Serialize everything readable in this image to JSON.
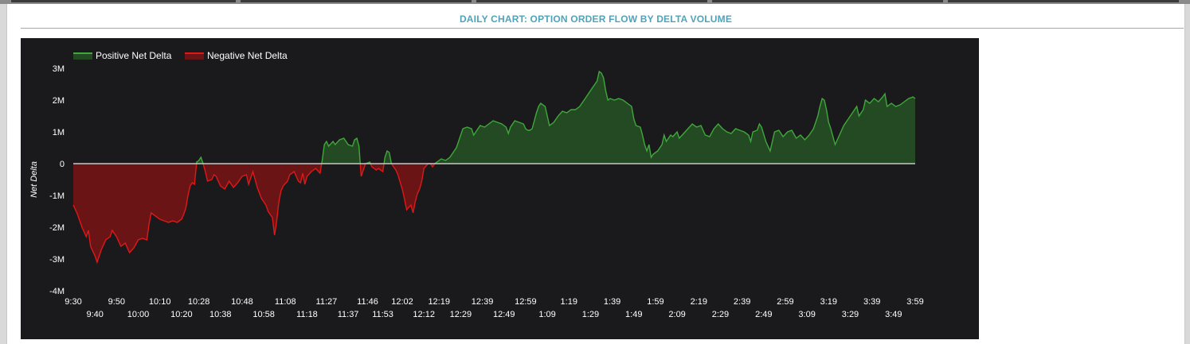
{
  "panel": {
    "title": "DAILY CHART: OPTION ORDER FLOW BY DELTA VOLUME"
  },
  "chart_data": {
    "type": "area",
    "title": "DAILY CHART: OPTION ORDER FLOW BY DELTA VOLUME",
    "xlabel": "",
    "ylabel": "Net Delta",
    "ylim": [
      -4000000,
      3000000
    ],
    "grid": false,
    "legend_position": "top-left",
    "y_tick_values": [
      3000000,
      2000000,
      1000000,
      0,
      -1000000,
      -2000000,
      -3000000,
      -4000000
    ],
    "y_tick_labels": [
      "3M",
      "2M",
      "1M",
      "0",
      "-1M",
      "-2M",
      "-3M",
      "-4M"
    ],
    "x_tick_labels_row1": [
      "9:30",
      "9:50",
      "10:10",
      "10:28",
      "10:48",
      "11:08",
      "11:27",
      "11:46",
      "12:02",
      "12:19",
      "12:39",
      "12:59",
      "1:19",
      "1:39",
      "1:59",
      "2:19",
      "2:39",
      "2:59",
      "3:19",
      "3:39",
      "3:59"
    ],
    "x_tick_labels_row2": [
      "9:40",
      "10:00",
      "10:20",
      "10:38",
      "10:58",
      "11:18",
      "11:37",
      "11:53",
      "12:12",
      "12:29",
      "12:49",
      "1:09",
      "1:29",
      "1:49",
      "2:09",
      "2:29",
      "2:49",
      "3:09",
      "3:29",
      "3:49"
    ],
    "x_start_minute": 570,
    "x_end_minute": 959,
    "colors": {
      "positive_line": "#3fa83a",
      "positive_fill": "#234a23",
      "negative_line": "#e01818",
      "negative_fill": "#6a1416",
      "zero_line": "#c8c8c8",
      "text": "#ffffff"
    },
    "series": [
      {
        "name": "Positive Net Delta",
        "color": "#3fa83a"
      },
      {
        "name": "Negative Net Delta",
        "color": "#e01818"
      }
    ],
    "points": [
      [
        "9:30",
        -1300000
      ],
      [
        "9:32",
        -1600000
      ],
      [
        "9:34",
        -2000000
      ],
      [
        "9:36",
        -2300000
      ],
      [
        "9:37",
        -2100000
      ],
      [
        "9:38",
        -2600000
      ],
      [
        "9:40",
        -2900000
      ],
      [
        "9:41",
        -3100000
      ],
      [
        "9:43",
        -2700000
      ],
      [
        "9:45",
        -2400000
      ],
      [
        "9:47",
        -2300000
      ],
      [
        "9:48",
        -2100000
      ],
      [
        "9:50",
        -2300000
      ],
      [
        "9:52",
        -2600000
      ],
      [
        "9:54",
        -2500000
      ],
      [
        "9:56",
        -2800000
      ],
      [
        "9:58",
        -2650000
      ],
      [
        "10:00",
        -2400000
      ],
      [
        "10:02",
        -2350000
      ],
      [
        "10:04",
        -2400000
      ],
      [
        "10:05",
        -1900000
      ],
      [
        "10:06",
        -1550000
      ],
      [
        "10:08",
        -1650000
      ],
      [
        "10:10",
        -1750000
      ],
      [
        "10:12",
        -1800000
      ],
      [
        "10:14",
        -1850000
      ],
      [
        "10:16",
        -1800000
      ],
      [
        "10:18",
        -1850000
      ],
      [
        "10:20",
        -1750000
      ],
      [
        "10:21",
        -1600000
      ],
      [
        "10:22",
        -1400000
      ],
      [
        "10:23",
        -1000000
      ],
      [
        "10:24",
        -700000
      ],
      [
        "10:25",
        -600000
      ],
      [
        "10:26",
        -650000
      ],
      [
        "10:27",
        50000
      ],
      [
        "10:28",
        100000
      ],
      [
        "10:29",
        200000
      ],
      [
        "10:30",
        0
      ],
      [
        "10:31",
        -250000
      ],
      [
        "10:32",
        -550000
      ],
      [
        "10:34",
        -500000
      ],
      [
        "10:35",
        -350000
      ],
      [
        "10:36",
        -400000
      ],
      [
        "10:38",
        -700000
      ],
      [
        "10:40",
        -800000
      ],
      [
        "10:42",
        -550000
      ],
      [
        "10:44",
        -750000
      ],
      [
        "10:46",
        -600000
      ],
      [
        "10:48",
        -400000
      ],
      [
        "10:50",
        -350000
      ],
      [
        "10:51",
        -650000
      ],
      [
        "10:52",
        -450000
      ],
      [
        "10:53",
        -250000
      ],
      [
        "10:55",
        -750000
      ],
      [
        "10:57",
        -1100000
      ],
      [
        "10:59",
        -1300000
      ],
      [
        "11:00",
        -1500000
      ],
      [
        "11:02",
        -1700000
      ],
      [
        "11:03",
        -2250000
      ],
      [
        "11:04",
        -1800000
      ],
      [
        "11:05",
        -1200000
      ],
      [
        "11:06",
        -850000
      ],
      [
        "11:07",
        -700000
      ],
      [
        "11:09",
        -550000
      ],
      [
        "11:10",
        -350000
      ],
      [
        "11:12",
        -250000
      ],
      [
        "11:14",
        -550000
      ],
      [
        "11:15",
        -600000
      ],
      [
        "11:16",
        -300000
      ],
      [
        "11:17",
        -650000
      ],
      [
        "11:18",
        -400000
      ],
      [
        "11:20",
        -250000
      ],
      [
        "11:22",
        -150000
      ],
      [
        "11:24",
        -300000
      ],
      [
        "11:25",
        100000
      ],
      [
        "11:26",
        600000
      ],
      [
        "11:27",
        700000
      ],
      [
        "11:28",
        550000
      ],
      [
        "11:30",
        700000
      ],
      [
        "11:31",
        600000
      ],
      [
        "11:33",
        750000
      ],
      [
        "11:35",
        800000
      ],
      [
        "11:36",
        700000
      ],
      [
        "11:37",
        600000
      ],
      [
        "11:39",
        550000
      ],
      [
        "11:40",
        750000
      ],
      [
        "11:41",
        800000
      ],
      [
        "11:42",
        550000
      ],
      [
        "11:43",
        -400000
      ],
      [
        "11:45",
        0
      ],
      [
        "11:47",
        50000
      ],
      [
        "11:48",
        -100000
      ],
      [
        "11:50",
        -200000
      ],
      [
        "11:51",
        -150000
      ],
      [
        "11:53",
        -250000
      ],
      [
        "11:54",
        200000
      ],
      [
        "11:55",
        400000
      ],
      [
        "11:56",
        350000
      ],
      [
        "11:57",
        0
      ],
      [
        "11:59",
        -200000
      ],
      [
        "12:00",
        -350000
      ],
      [
        "12:02",
        -800000
      ],
      [
        "12:03",
        -1100000
      ],
      [
        "12:04",
        -1450000
      ],
      [
        "12:06",
        -1300000
      ],
      [
        "12:07",
        -1550000
      ],
      [
        "12:08",
        -1200000
      ],
      [
        "12:09",
        -950000
      ],
      [
        "12:10",
        -800000
      ],
      [
        "12:11",
        -550000
      ],
      [
        "12:12",
        -150000
      ],
      [
        "12:14",
        0
      ],
      [
        "12:15",
        0
      ],
      [
        "12:16",
        -100000
      ],
      [
        "12:17",
        0
      ],
      [
        "12:19",
        100000
      ],
      [
        "12:20",
        150000
      ],
      [
        "12:22",
        100000
      ],
      [
        "12:24",
        200000
      ],
      [
        "12:26",
        400000
      ],
      [
        "12:27",
        500000
      ],
      [
        "12:28",
        700000
      ],
      [
        "12:29",
        900000
      ],
      [
        "12:30",
        1100000
      ],
      [
        "12:32",
        1150000
      ],
      [
        "12:34",
        1100000
      ],
      [
        "12:35",
        900000
      ],
      [
        "12:36",
        1000000
      ],
      [
        "12:38",
        1200000
      ],
      [
        "12:40",
        1150000
      ],
      [
        "12:42",
        1250000
      ],
      [
        "12:44",
        1350000
      ],
      [
        "12:46",
        1300000
      ],
      [
        "12:48",
        1250000
      ],
      [
        "12:50",
        1150000
      ],
      [
        "12:51",
        950000
      ],
      [
        "12:52",
        1150000
      ],
      [
        "12:54",
        1350000
      ],
      [
        "12:56",
        1300000
      ],
      [
        "12:58",
        1250000
      ],
      [
        "12:59",
        1100000
      ],
      [
        "1:00",
        1050000
      ],
      [
        "1:01",
        1050000
      ],
      [
        "1:02",
        1100000
      ],
      [
        "1:04",
        1600000
      ],
      [
        "1:05",
        1800000
      ],
      [
        "1:06",
        1900000
      ],
      [
        "1:08",
        1800000
      ],
      [
        "1:09",
        1500000
      ],
      [
        "1:10",
        1200000
      ],
      [
        "1:12",
        1300000
      ],
      [
        "1:14",
        1500000
      ],
      [
        "1:16",
        1650000
      ],
      [
        "1:18",
        1600000
      ],
      [
        "1:20",
        1700000
      ],
      [
        "1:22",
        1700000
      ],
      [
        "1:24",
        1800000
      ],
      [
        "1:26",
        2000000
      ],
      [
        "1:28",
        2200000
      ],
      [
        "1:30",
        2400000
      ],
      [
        "1:32",
        2600000
      ],
      [
        "1:33",
        2900000
      ],
      [
        "1:34",
        2850000
      ],
      [
        "1:35",
        2700000
      ],
      [
        "1:36",
        2300000
      ],
      [
        "1:37",
        2000000
      ],
      [
        "1:38",
        2050000
      ],
      [
        "1:40",
        2000000
      ],
      [
        "1:42",
        2050000
      ],
      [
        "1:44",
        2000000
      ],
      [
        "1:46",
        1900000
      ],
      [
        "1:48",
        1800000
      ],
      [
        "1:49",
        1400000
      ],
      [
        "1:50",
        1200000
      ],
      [
        "1:52",
        1150000
      ],
      [
        "1:53",
        900000
      ],
      [
        "1:54",
        600000
      ],
      [
        "1:55",
        400000
      ],
      [
        "1:56",
        600000
      ],
      [
        "1:57",
        200000
      ],
      [
        "1:58",
        300000
      ],
      [
        "2:00",
        400000
      ],
      [
        "2:02",
        600000
      ],
      [
        "2:03",
        900000
      ],
      [
        "2:04",
        700000
      ],
      [
        "2:06",
        900000
      ],
      [
        "2:07",
        850000
      ],
      [
        "2:09",
        1000000
      ],
      [
        "2:10",
        800000
      ],
      [
        "2:12",
        950000
      ],
      [
        "2:14",
        1100000
      ],
      [
        "2:16",
        1250000
      ],
      [
        "2:18",
        1150000
      ],
      [
        "2:20",
        1200000
      ],
      [
        "2:22",
        900000
      ],
      [
        "2:24",
        850000
      ],
      [
        "2:26",
        1100000
      ],
      [
        "2:28",
        1250000
      ],
      [
        "2:30",
        1100000
      ],
      [
        "2:32",
        1000000
      ],
      [
        "2:34",
        950000
      ],
      [
        "2:36",
        1100000
      ],
      [
        "2:38",
        1050000
      ],
      [
        "2:40",
        1000000
      ],
      [
        "2:42",
        900000
      ],
      [
        "2:43",
        700000
      ],
      [
        "2:44",
        1000000
      ],
      [
        "2:46",
        1050000
      ],
      [
        "2:47",
        1250000
      ],
      [
        "2:48",
        1150000
      ],
      [
        "2:50",
        700000
      ],
      [
        "2:52",
        400000
      ],
      [
        "2:54",
        1000000
      ],
      [
        "2:56",
        1050000
      ],
      [
        "2:58",
        850000
      ],
      [
        "3:00",
        1000000
      ],
      [
        "3:02",
        1050000
      ],
      [
        "3:04",
        800000
      ],
      [
        "3:06",
        900000
      ],
      [
        "3:08",
        750000
      ],
      [
        "3:10",
        900000
      ],
      [
        "3:12",
        1100000
      ],
      [
        "3:14",
        1500000
      ],
      [
        "3:15",
        1800000
      ],
      [
        "3:16",
        2050000
      ],
      [
        "3:17",
        2000000
      ],
      [
        "3:18",
        1700000
      ],
      [
        "3:19",
        1300000
      ],
      [
        "3:20",
        1100000
      ],
      [
        "3:22",
        600000
      ],
      [
        "3:24",
        900000
      ],
      [
        "3:26",
        1200000
      ],
      [
        "3:28",
        1400000
      ],
      [
        "3:30",
        1600000
      ],
      [
        "3:32",
        1800000
      ],
      [
        "3:33",
        1500000
      ],
      [
        "3:35",
        1700000
      ],
      [
        "3:36",
        2000000
      ],
      [
        "3:38",
        1900000
      ],
      [
        "3:40",
        2050000
      ],
      [
        "3:42",
        1950000
      ],
      [
        "3:44",
        2100000
      ],
      [
        "3:45",
        2200000
      ],
      [
        "3:46",
        1800000
      ],
      [
        "3:48",
        1900000
      ],
      [
        "3:50",
        1800000
      ],
      [
        "3:52",
        1850000
      ],
      [
        "3:54",
        1950000
      ],
      [
        "3:56",
        2050000
      ],
      [
        "3:58",
        2100000
      ],
      [
        "3:59",
        2050000
      ]
    ]
  }
}
